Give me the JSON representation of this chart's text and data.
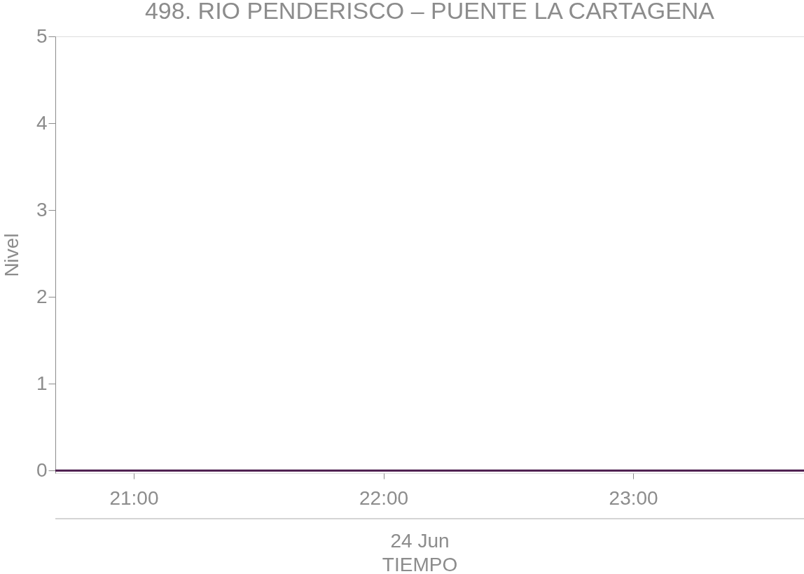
{
  "chart_data": {
    "type": "line",
    "title": "498. RIO PENDERISCO – PUENTE LA CARTAGENA",
    "xlabel": "TIEMPO",
    "ylabel": "Nivel",
    "annotations": [
      "24 Jun"
    ],
    "x": [
      20.686,
      23.684
    ],
    "series": [
      {
        "color": "#4a1a4c",
        "values": [
          0,
          0
        ]
      }
    ],
    "xlim": [
      20.686,
      23.684
    ],
    "xticks": [
      {
        "value": 21,
        "label": "21:00"
      },
      {
        "value": 22,
        "label": "22:00"
      },
      {
        "value": 23,
        "label": "23:00"
      }
    ],
    "ylim": [
      -0.03,
      5
    ],
    "yticks": [
      0,
      1,
      2,
      3,
      4,
      5
    ],
    "grid": false,
    "marker": "none",
    "line_style": "solid"
  }
}
